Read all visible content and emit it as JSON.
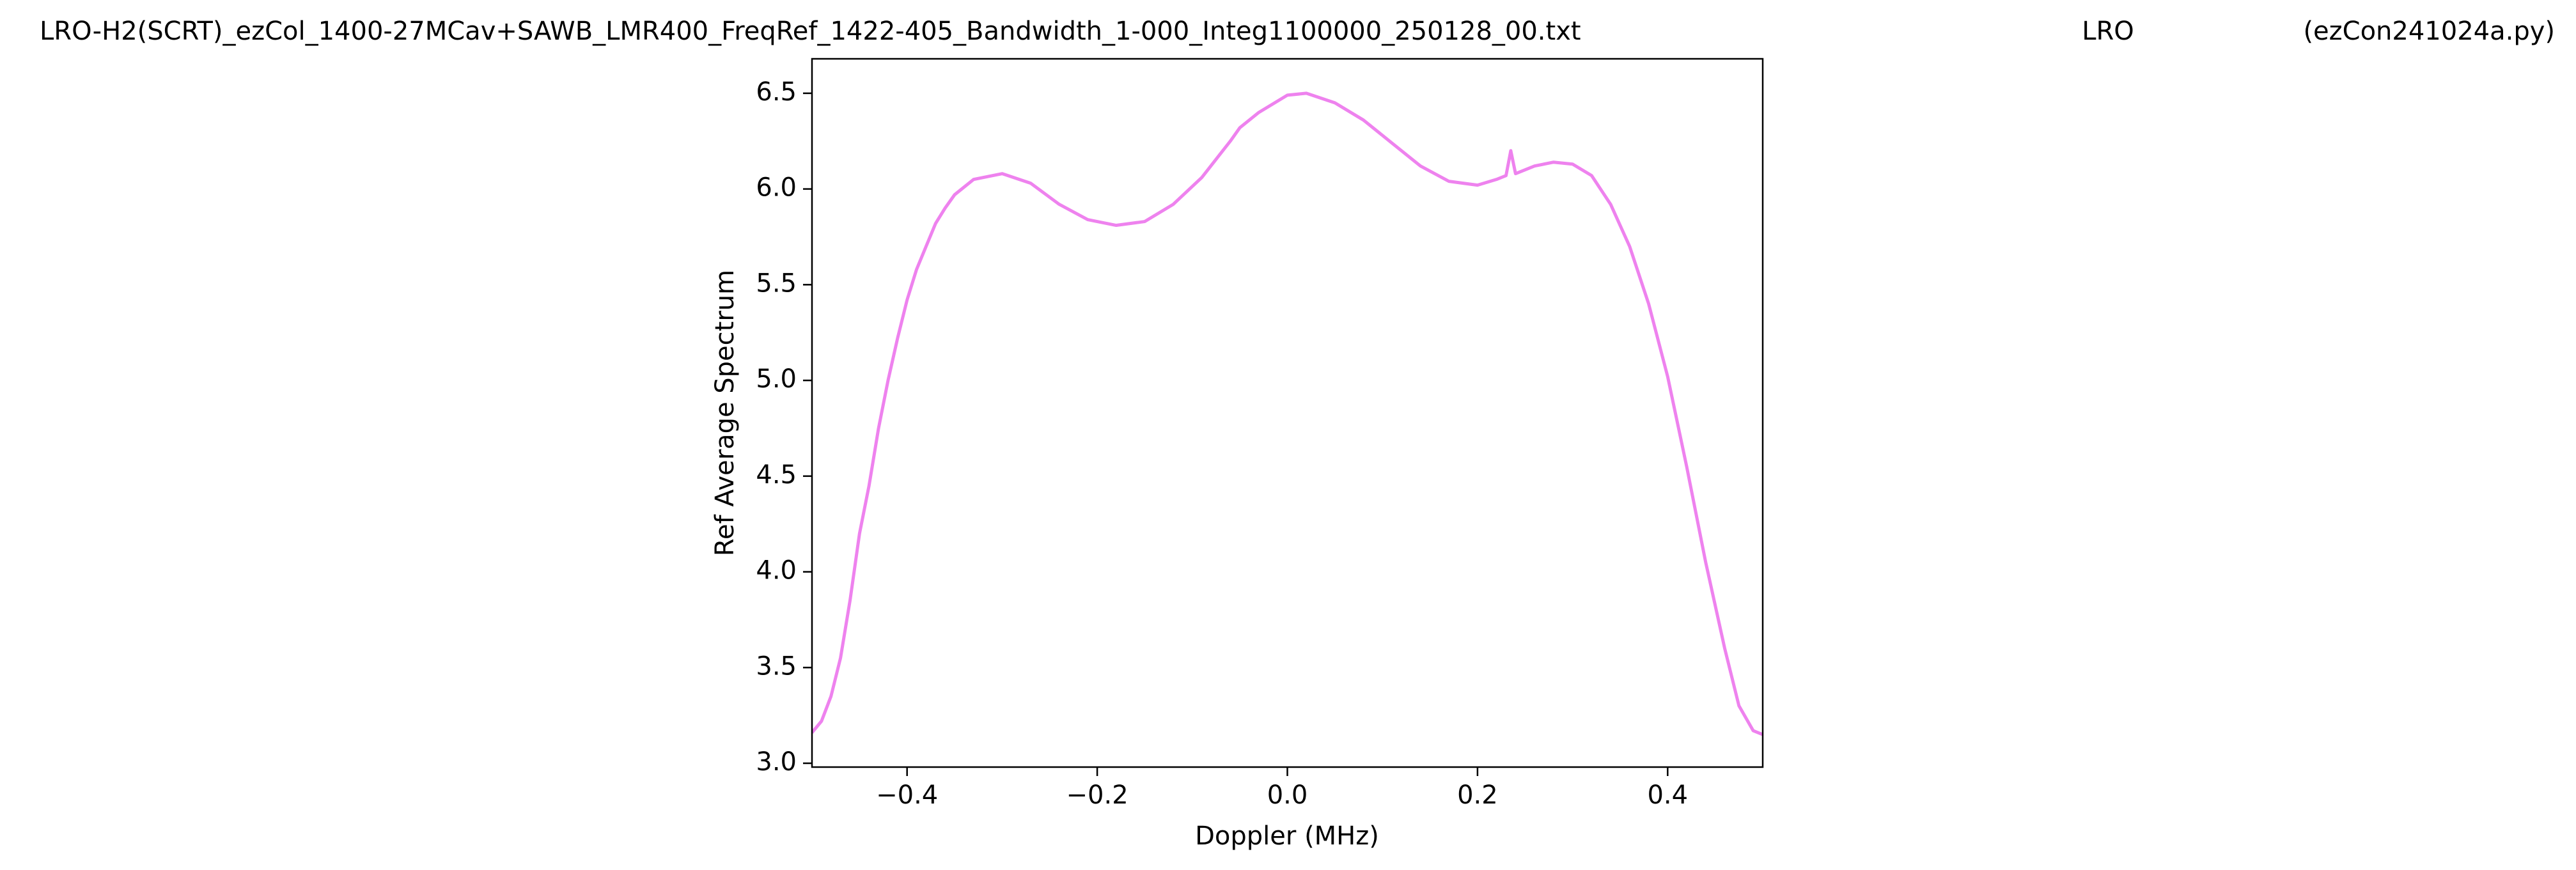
{
  "chart_data": {
    "type": "line",
    "title_parts": [
      "LRO-H2(SCRT)_ezCol_1400-27MCav+SAWB_LMR400_FreqRef_1422-405_Bandwidth_1-000_Integ1100000_250128_00.txt",
      "LRO",
      "(ezCon241024a.py)"
    ],
    "xlabel": "Doppler (MHz)",
    "ylabel": "Ref Average Spectrum",
    "x": [
      -0.5,
      -0.49,
      -0.48,
      -0.47,
      -0.46,
      -0.45,
      -0.44,
      -0.43,
      -0.42,
      -0.41,
      -0.4,
      -0.39,
      -0.38,
      -0.37,
      -0.36,
      -0.35,
      -0.33,
      -0.3,
      -0.27,
      -0.24,
      -0.21,
      -0.18,
      -0.15,
      -0.12,
      -0.09,
      -0.06,
      -0.05,
      -0.03,
      0.0,
      0.02,
      0.05,
      0.08,
      0.11,
      0.14,
      0.17,
      0.2,
      0.22,
      0.23,
      0.235,
      0.24,
      0.26,
      0.28,
      0.3,
      0.32,
      0.34,
      0.36,
      0.38,
      0.4,
      0.42,
      0.44,
      0.46,
      0.475,
      0.49,
      0.5
    ],
    "series": [
      {
        "color": "#ee82ee",
        "values": [
          3.16,
          3.22,
          3.35,
          3.55,
          3.85,
          4.2,
          4.45,
          4.75,
          5.0,
          5.22,
          5.42,
          5.58,
          5.7,
          5.82,
          5.9,
          5.97,
          6.05,
          6.08,
          6.03,
          5.92,
          5.84,
          5.81,
          5.83,
          5.92,
          6.06,
          6.25,
          6.32,
          6.4,
          6.49,
          6.5,
          6.45,
          6.36,
          6.24,
          6.12,
          6.04,
          6.02,
          6.05,
          6.07,
          6.2,
          6.08,
          6.12,
          6.14,
          6.13,
          6.07,
          5.92,
          5.7,
          5.4,
          5.02,
          4.55,
          4.05,
          3.6,
          3.3,
          3.17,
          3.15
        ]
      }
    ],
    "xlim": [
      -0.5,
      0.5
    ],
    "xticks": [
      {
        "value": -0.4,
        "label": "−0.4"
      },
      {
        "value": -0.2,
        "label": "−0.2"
      },
      {
        "value": 0,
        "label": "0.0"
      },
      0.2,
      0.4
    ],
    "ylim": [
      2.98,
      6.68
    ],
    "yticks": [
      {
        "value": 3,
        "label": "3.0"
      },
      3.5,
      {
        "value": 4,
        "label": "4.0"
      },
      4.5,
      {
        "value": 5,
        "label": "5.0"
      },
      5.5,
      {
        "value": 6,
        "label": "6.0"
      },
      6.5
    ],
    "grid": false
  }
}
